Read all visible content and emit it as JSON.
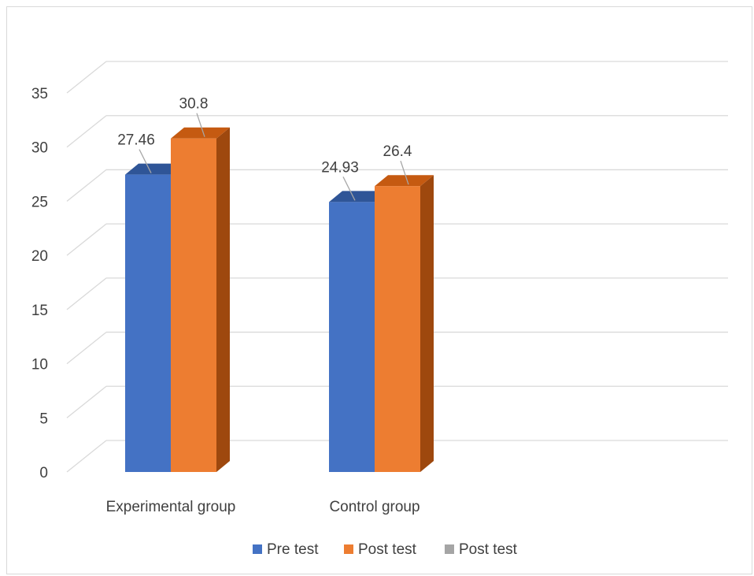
{
  "chart_data": {
    "type": "bar",
    "style": "3d-clustered-column",
    "categories": [
      "Experimental group",
      "Control group",
      ""
    ],
    "series": [
      {
        "name": "Pre test",
        "values": [
          27.46,
          24.93,
          null
        ],
        "color": "#4472c4",
        "side_color": "#2f5597",
        "top_color": "#2f5597"
      },
      {
        "name": "Post test",
        "values": [
          30.8,
          26.4,
          null
        ],
        "color": "#ed7d31",
        "side_color": "#9e480e",
        "top_color": "#c55a11"
      },
      {
        "name": "Post test",
        "values": [
          null,
          null,
          null
        ],
        "color": "#a5a5a5",
        "side_color": "#7b7b7b",
        "top_color": "#7b7b7b"
      }
    ],
    "y_ticks": [
      "0",
      "5",
      "10",
      "15",
      "20",
      "25",
      "30",
      "35"
    ],
    "ylim": [
      0,
      35
    ],
    "data_labels": [
      [
        "27.46",
        "24.93",
        ""
      ],
      [
        "30.8",
        "26.4",
        ""
      ]
    ],
    "title": "",
    "xlabel": "",
    "ylabel": "",
    "grid": true,
    "legend_position": "bottom"
  }
}
